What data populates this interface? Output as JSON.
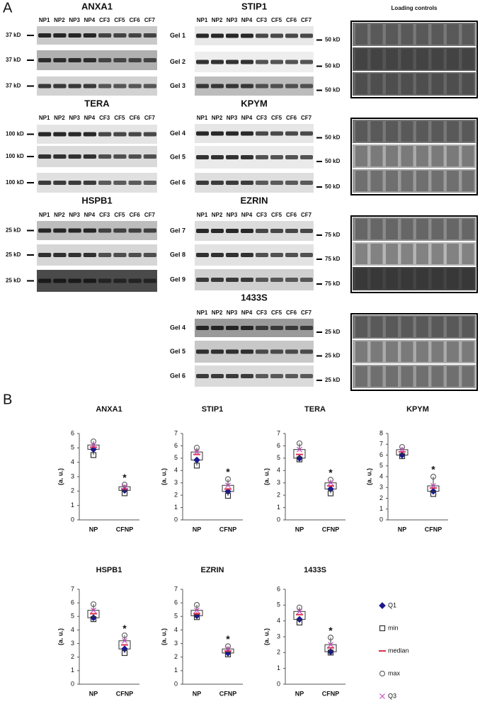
{
  "panel_a": {
    "label": "A",
    "loading_title": "Loading controls",
    "blots": [
      {
        "title": "ANXA1",
        "lanes": [
          "NP1",
          "NP2",
          "NP3",
          "NP4",
          "CF3",
          "CF5",
          "CF6",
          "CF7"
        ],
        "markers": [
          "37 kD",
          "37 kD",
          "37 kD"
        ]
      },
      {
        "title": "TERA",
        "lanes": [
          "NP1",
          "NP2",
          "NP3",
          "NP4",
          "CF3",
          "CF5",
          "CF6",
          "CF7"
        ],
        "markers": [
          "100 kD",
          "100 kD",
          "100 kD"
        ]
      },
      {
        "title": "HSPB1",
        "lanes": [
          "NP1",
          "NP2",
          "NP3",
          "NP4",
          "CF3",
          "CF5",
          "CF6",
          "CF7"
        ],
        "markers": [
          "25 kD",
          "25 kD",
          "25 kD"
        ]
      },
      {
        "title": "STIP1",
        "lanes": [
          "NP1",
          "NP2",
          "NP3",
          "NP4",
          "CF3",
          "CF5",
          "CF6",
          "CF7"
        ],
        "gels": [
          "Gel 1",
          "Gel 2",
          "Gel 3"
        ],
        "markers": [
          "50 kD",
          "50 kD",
          "50 kD"
        ]
      },
      {
        "title": "KPYM",
        "lanes": [
          "NP1",
          "NP2",
          "NP3",
          "NP4",
          "CF3",
          "CF5",
          "CF6",
          "CF7"
        ],
        "gels": [
          "Gel 4",
          "Gel 5",
          "Gel 6"
        ],
        "markers": [
          "50 kD",
          "50 kD",
          "50 kD"
        ]
      },
      {
        "title": "EZRIN",
        "lanes": [
          "NP1",
          "NP2",
          "NP3",
          "NP4",
          "CF3",
          "CF5",
          "CF6",
          "CF7"
        ],
        "gels": [
          "Gel 7",
          "Gel 8",
          "Gel 9"
        ],
        "markers": [
          "75 kD",
          "75 kD",
          "75 kD"
        ]
      },
      {
        "title": "1433S",
        "lanes": [
          "NP1",
          "NP2",
          "NP3",
          "NP4",
          "CF3",
          "CF5",
          "CF6",
          "CF7"
        ],
        "gels": [
          "Gel 4",
          "Gel 5",
          "Gel 6"
        ],
        "markers": [
          "25 kD",
          "25 kD",
          "25 kD"
        ]
      }
    ]
  },
  "panel_b": {
    "label": "B",
    "legend": [
      {
        "name": "Q1",
        "color": "#1a1a8c"
      },
      {
        "name": "min",
        "color": "#333333"
      },
      {
        "name": "median",
        "color": "#e0304a"
      },
      {
        "name": "max",
        "color": "#666666"
      },
      {
        "name": "Q3",
        "color": "#c84fbf"
      }
    ]
  },
  "chart_data": [
    {
      "type": "box",
      "title": "ANXA1",
      "ylabel": "(a. u.)",
      "categories": [
        "NP",
        "CFNP"
      ],
      "annotation": "*",
      "ylim": [
        0,
        6
      ],
      "yticks": [
        0,
        1,
        2,
        3,
        4,
        5,
        6
      ],
      "box": {
        "Q1": [
          4.9,
          2.05
        ],
        "min": [
          4.5,
          1.85
        ],
        "median": [
          5.05,
          2.15
        ],
        "max": [
          5.45,
          2.45
        ],
        "Q3": [
          5.2,
          2.3
        ]
      }
    },
    {
      "type": "box",
      "title": "STIP1",
      "ylabel": "(a. u.)",
      "categories": [
        "NP",
        "CFNP"
      ],
      "annotation": "*",
      "ylim": [
        0,
        7
      ],
      "yticks": [
        0,
        1,
        2,
        3,
        4,
        5,
        6,
        7
      ],
      "box": {
        "Q1": [
          4.85,
          2.3
        ],
        "min": [
          4.4,
          1.95
        ],
        "median": [
          5.3,
          2.5
        ],
        "max": [
          5.85,
          3.3
        ],
        "Q3": [
          5.5,
          2.8
        ]
      }
    },
    {
      "type": "box",
      "title": "TERA",
      "ylabel": "(a. u.)",
      "categories": [
        "NP",
        "CFNP"
      ],
      "annotation": "*",
      "ylim": [
        0,
        7
      ],
      "yticks": [
        0,
        1,
        2,
        3,
        4,
        5,
        6,
        7
      ],
      "box": {
        "Q1": [
          5.0,
          2.5
        ],
        "min": [
          4.9,
          2.15
        ],
        "median": [
          5.3,
          2.75
        ],
        "max": [
          6.2,
          3.25
        ],
        "Q3": [
          5.7,
          3.0
        ]
      }
    },
    {
      "type": "box",
      "title": "KPYM",
      "ylabel": "(a. u.)",
      "categories": [
        "NP",
        "CFNP"
      ],
      "annotation": "*",
      "ylim": [
        0,
        8
      ],
      "yticks": [
        0,
        1,
        2,
        3,
        4,
        5,
        6,
        7,
        8
      ],
      "box": {
        "Q1": [
          6.0,
          2.65
        ],
        "min": [
          5.9,
          2.4
        ],
        "median": [
          6.3,
          2.95
        ],
        "max": [
          6.75,
          4.0
        ],
        "Q3": [
          6.5,
          3.15
        ]
      }
    },
    {
      "type": "box",
      "title": "HSPB1",
      "ylabel": "(a. u.)",
      "categories": [
        "NP",
        "CFNP"
      ],
      "annotation": "*",
      "ylim": [
        0,
        7
      ],
      "yticks": [
        0,
        1,
        2,
        3,
        4,
        5,
        6,
        7
      ],
      "box": {
        "Q1": [
          4.9,
          2.6
        ],
        "min": [
          4.8,
          2.3
        ],
        "median": [
          5.2,
          2.9
        ],
        "max": [
          5.9,
          3.6
        ],
        "Q3": [
          5.45,
          3.2
        ]
      }
    },
    {
      "type": "box",
      "title": "EZRIN",
      "ylabel": "(a. u.)",
      "categories": [
        "NP",
        "CFNP"
      ],
      "annotation": "*",
      "ylim": [
        0,
        7
      ],
      "yticks": [
        0,
        1,
        2,
        3,
        4,
        5,
        6,
        7
      ],
      "box": {
        "Q1": [
          5.05,
          2.3
        ],
        "min": [
          4.95,
          2.2
        ],
        "median": [
          5.2,
          2.45
        ],
        "max": [
          5.85,
          2.8
        ],
        "Q3": [
          5.45,
          2.6
        ]
      }
    },
    {
      "type": "box",
      "title": "1433S",
      "ylabel": "(a. u.)",
      "categories": [
        "NP",
        "CFNP"
      ],
      "annotation": "*",
      "ylim": [
        0,
        6
      ],
      "yticks": [
        0,
        1,
        2,
        3,
        4,
        5,
        6
      ],
      "box": {
        "Q1": [
          4.1,
          2.05
        ],
        "min": [
          3.9,
          2.0
        ],
        "median": [
          4.4,
          2.3
        ],
        "max": [
          4.85,
          2.95
        ],
        "Q3": [
          4.6,
          2.5
        ]
      }
    }
  ]
}
